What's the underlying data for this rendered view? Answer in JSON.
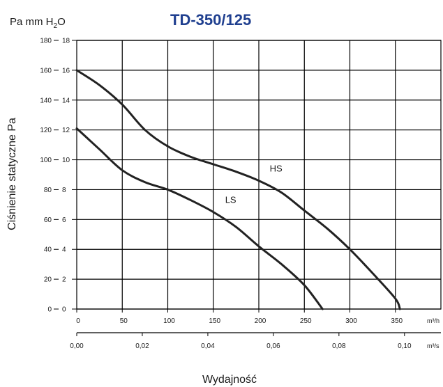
{
  "header": {
    "units_label_part1": "Pa  mm H",
    "units_label_sub": "2",
    "units_label_part2": "O",
    "title": "TD-350/125"
  },
  "chart_data": {
    "type": "line",
    "title": "TD-350/125",
    "ylabel": "Ciśnienie statyczne  Pa",
    "xlabel": "Wydajność",
    "ylim": [
      0,
      180
    ],
    "xlim": [
      0,
      400
    ],
    "grid": true,
    "y_ticks_pa": [
      "0",
      "20",
      "40",
      "60",
      "80",
      "100",
      "120",
      "140",
      "160",
      "180"
    ],
    "y_ticks_mmh2o": [
      "0",
      "2",
      "4",
      "6",
      "8",
      "10",
      "12",
      "14",
      "16",
      "18"
    ],
    "x_ticks_m3h": [
      "0",
      "50",
      "100",
      "150",
      "200",
      "250",
      "300",
      "350"
    ],
    "x_unit_m3h": "m³/h",
    "x_ticks_m3s": [
      "0,00",
      "0,02",
      "0,04",
      "0,06",
      "0,08",
      "0,10"
    ],
    "x_unit_m3s": "m³/s",
    "series": [
      {
        "name": "HS",
        "x": [
          0,
          25,
          50,
          75,
          100,
          125,
          150,
          175,
          200,
          225,
          250,
          275,
          300,
          325,
          350,
          355
        ],
        "y": [
          160,
          150,
          137,
          120,
          109,
          102,
          97,
          92,
          86,
          78,
          66,
          54,
          40,
          24,
          7,
          0
        ]
      },
      {
        "name": "LS",
        "x": [
          0,
          25,
          50,
          75,
          100,
          125,
          150,
          175,
          200,
          225,
          250,
          270
        ],
        "y": [
          121,
          107,
          93,
          85,
          80,
          73,
          65,
          55,
          42,
          30,
          16,
          0
        ]
      }
    ]
  }
}
